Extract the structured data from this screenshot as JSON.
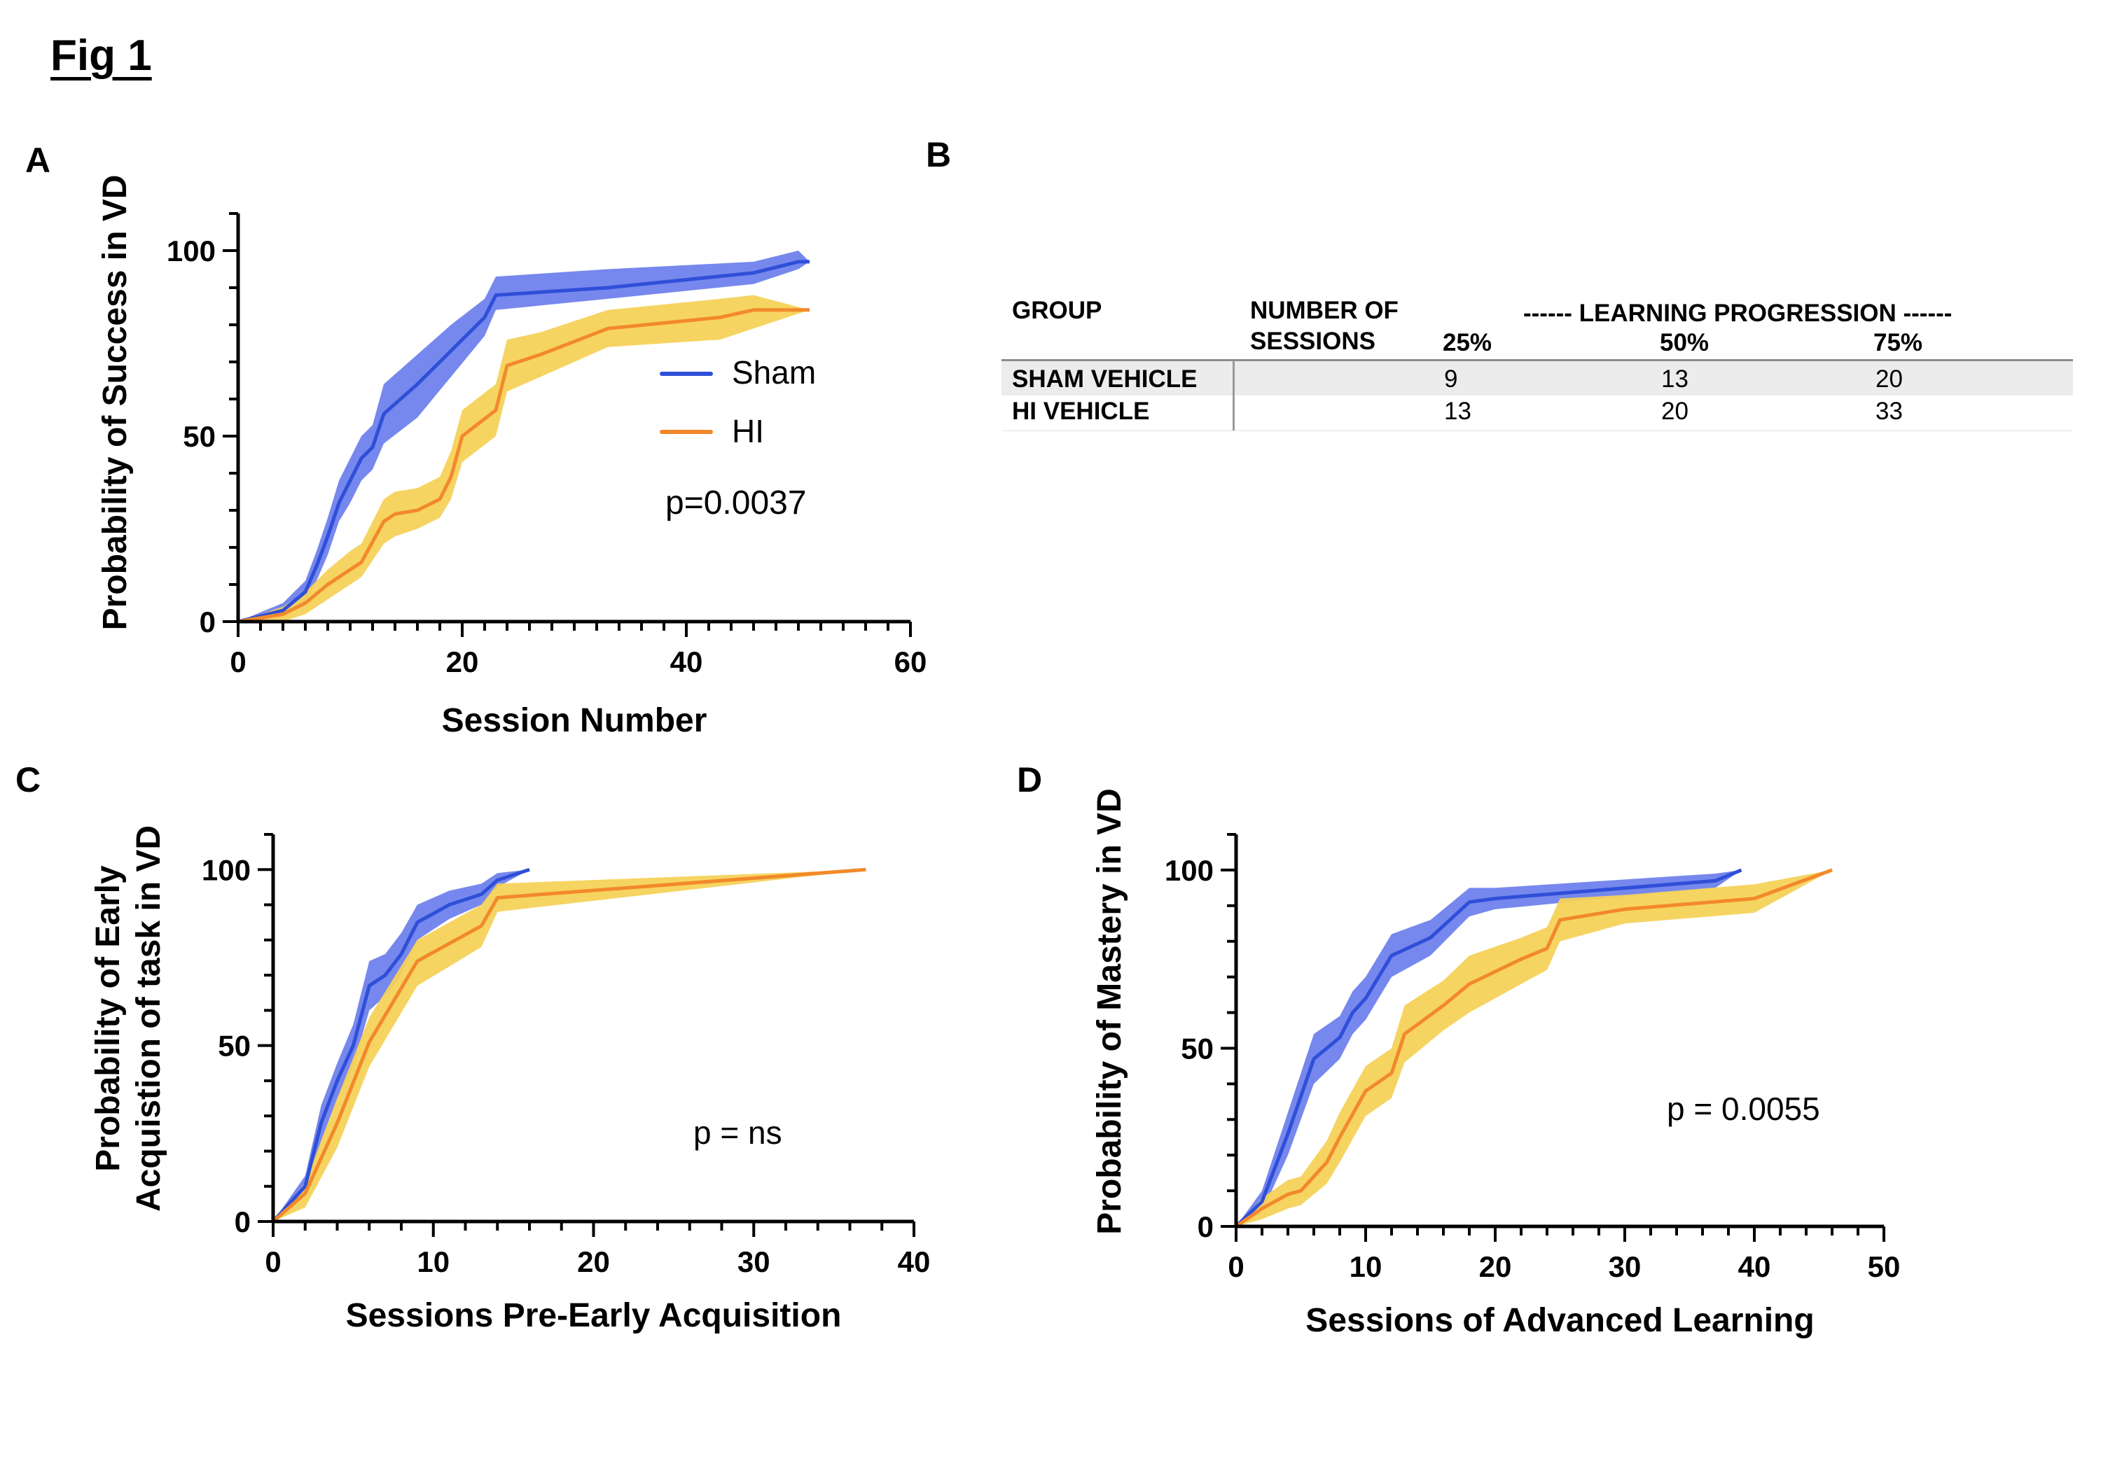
{
  "figure_title": "Fig 1",
  "colors": {
    "sham": "#2f4fd8",
    "hi": "#f2892a",
    "sham_band": "#6f82ec",
    "hi_band": "#f6d25a",
    "axis": "#000000"
  },
  "panels": {
    "A": {
      "letter": "A",
      "p_value": "p=0.0037",
      "legend": {
        "sham": "Sham",
        "hi": "HI"
      }
    },
    "B": {
      "letter": "B",
      "headers": {
        "group": "GROUP",
        "sessions_line1": "NUMBER OF",
        "sessions_line2": "SESSIONS",
        "learning": "------ LEARNING PROGRESSION ------",
        "p25": "25%",
        "p50": "50%",
        "p75": "75%"
      },
      "rows": [
        {
          "group": "SHAM VEHICLE",
          "p25": "9",
          "p50": "13",
          "p75": "20"
        },
        {
          "group": "HI VEHICLE",
          "p25": "13",
          "p50": "20",
          "p75": "33"
        }
      ]
    },
    "C": {
      "letter": "C",
      "p_value": "p = ns"
    },
    "D": {
      "letter": "D",
      "p_value": "p = 0.0055"
    }
  },
  "chart_data": [
    {
      "panel": "A",
      "type": "line",
      "xlabel": "Session Number",
      "ylabel": "Probability of Success in VD",
      "xlim": [
        0,
        60
      ],
      "ylim": [
        0,
        110
      ],
      "xticks": [
        0,
        20,
        40,
        60
      ],
      "yticks": [
        0,
        50,
        100
      ],
      "legend_position": "right",
      "series": [
        {
          "name": "Sham",
          "x": [
            0,
            4,
            6,
            7,
            8,
            9,
            10,
            11,
            12,
            13,
            16,
            19,
            22,
            23,
            33,
            46,
            50,
            51
          ],
          "y": [
            0,
            3,
            8,
            15,
            23,
            32,
            38,
            44,
            47,
            56,
            64,
            73,
            82,
            88,
            90,
            94,
            97,
            97
          ],
          "lower": [
            0,
            1,
            5,
            11,
            18,
            27,
            32,
            38,
            41,
            48,
            55,
            66,
            77,
            84,
            87,
            91,
            95,
            97
          ],
          "upper": [
            0,
            5,
            11,
            19,
            28,
            38,
            44,
            50,
            53,
            64,
            72,
            80,
            87,
            93,
            95,
            97,
            100,
            97
          ]
        },
        {
          "name": "HI",
          "x": [
            0,
            4,
            6,
            8,
            10,
            11,
            13,
            14,
            16,
            18,
            19,
            20,
            23,
            24,
            27,
            33,
            43,
            46,
            51
          ],
          "y": [
            0,
            2,
            5,
            10,
            14,
            16,
            27,
            29,
            30,
            33,
            39,
            50,
            57,
            69,
            72,
            79,
            82,
            84,
            84
          ],
          "lower": [
            0,
            0,
            2,
            6,
            10,
            12,
            21,
            23,
            25,
            28,
            33,
            43,
            50,
            62,
            66,
            74,
            76,
            79,
            84
          ],
          "upper": [
            0,
            4,
            8,
            14,
            19,
            21,
            33,
            35,
            36,
            39,
            46,
            57,
            64,
            76,
            78,
            84,
            87,
            88,
            84
          ]
        }
      ]
    },
    {
      "panel": "C",
      "type": "line",
      "xlabel": "Sessions Pre-Early Acquisition",
      "ylabel": [
        "Probability of Early",
        "Acquistion of task in VD"
      ],
      "xlim": [
        0,
        40
      ],
      "ylim": [
        0,
        110
      ],
      "xticks": [
        0,
        10,
        20,
        30,
        40
      ],
      "yticks": [
        0,
        50,
        100
      ],
      "series": [
        {
          "name": "Sham",
          "x": [
            0,
            2,
            3,
            4,
            5,
            6,
            7,
            8,
            9,
            11,
            13,
            14,
            16
          ],
          "y": [
            0,
            10,
            28,
            40,
            50,
            67,
            70,
            76,
            85,
            90,
            93,
            97,
            100
          ],
          "lower": [
            0,
            7,
            23,
            35,
            44,
            60,
            64,
            70,
            80,
            86,
            90,
            95,
            100
          ],
          "upper": [
            0,
            13,
            33,
            45,
            56,
            74,
            76,
            82,
            90,
            94,
            96,
            99,
            100
          ]
        },
        {
          "name": "HI",
          "x": [
            0,
            2,
            4,
            6,
            9,
            13,
            14,
            37
          ],
          "y": [
            0,
            8,
            28,
            51,
            74,
            84,
            92,
            100
          ],
          "lower": [
            0,
            4,
            21,
            44,
            67,
            78,
            88,
            100
          ],
          "upper": [
            0,
            11,
            35,
            58,
            80,
            90,
            96,
            100
          ]
        }
      ]
    },
    {
      "panel": "D",
      "type": "line",
      "xlabel": "Sessions of Advanced Learning",
      "ylabel": "Probability of Mastery in VD",
      "xlim": [
        0,
        50
      ],
      "ylim": [
        0,
        110
      ],
      "xticks": [
        0,
        10,
        20,
        30,
        40,
        50
      ],
      "yticks": [
        0,
        50,
        100
      ],
      "series": [
        {
          "name": "Sham",
          "x": [
            0,
            2,
            4,
            6,
            8,
            9,
            10,
            12,
            15,
            18,
            20,
            37,
            39
          ],
          "y": [
            0,
            7,
            26,
            47,
            53,
            60,
            64,
            76,
            81,
            91,
            92,
            97,
            100
          ],
          "lower": [
            0,
            4,
            20,
            40,
            47,
            54,
            58,
            70,
            76,
            87,
            89,
            95,
            100
          ],
          "upper": [
            0,
            10,
            32,
            54,
            59,
            66,
            70,
            82,
            86,
            95,
            95,
            99,
            100
          ]
        },
        {
          "name": "HI",
          "x": [
            0,
            2,
            4,
            5,
            7,
            8,
            10,
            12,
            13,
            16,
            18,
            22,
            24,
            25,
            30,
            40,
            46
          ],
          "y": [
            0,
            5,
            9,
            10,
            18,
            25,
            38,
            43,
            54,
            62,
            68,
            75,
            78,
            86,
            89,
            92,
            100
          ],
          "lower": [
            0,
            2,
            5,
            6,
            12,
            18,
            31,
            36,
            46,
            55,
            60,
            68,
            72,
            80,
            85,
            88,
            100
          ],
          "upper": [
            0,
            8,
            13,
            14,
            24,
            32,
            45,
            50,
            62,
            69,
            76,
            81,
            84,
            92,
            93,
            96,
            100
          ]
        }
      ]
    }
  ]
}
